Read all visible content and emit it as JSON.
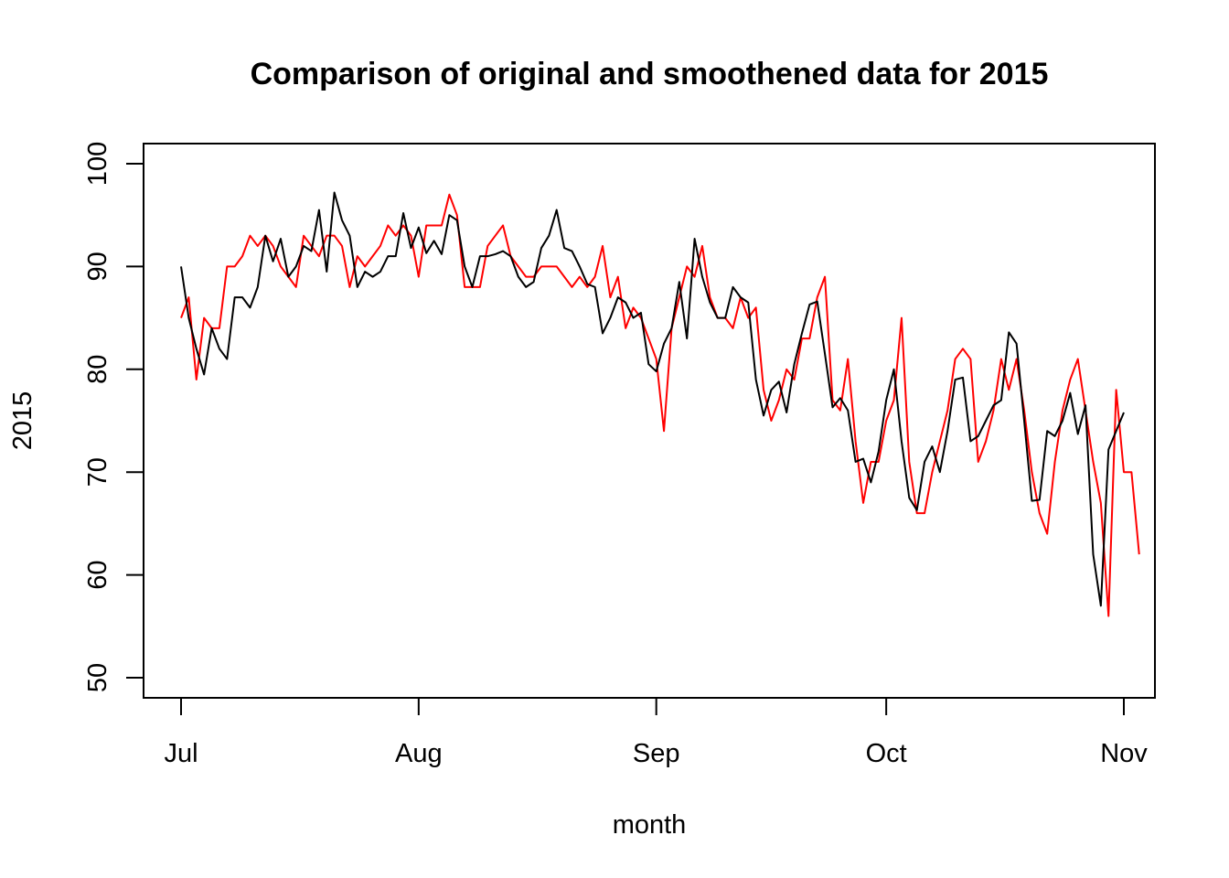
{
  "chart_data": {
    "type": "line",
    "title": "Comparison of original and smoothened data for 2015",
    "xlabel": "month",
    "ylabel": "2015",
    "x_axis": {
      "type": "date",
      "range": [
        "2015-07-01",
        "2015-11-01"
      ],
      "ticks": [
        {
          "date": "2015-07-01",
          "label": "Jul"
        },
        {
          "date": "2015-08-01",
          "label": "Aug"
        },
        {
          "date": "2015-09-01",
          "label": "Sep"
        },
        {
          "date": "2015-10-01",
          "label": "Oct"
        },
        {
          "date": "2015-11-01",
          "label": "Nov"
        }
      ]
    },
    "y_axis": {
      "range": [
        50,
        100
      ],
      "ticks": [
        "50",
        "60",
        "70",
        "80",
        "90",
        "100"
      ]
    },
    "grid": false,
    "legend": "none",
    "x_start": "2015-07-01",
    "x_step_days": 1,
    "series": [
      {
        "color": "#ff0000",
        "values": [
          85,
          87,
          79,
          85,
          84,
          84,
          90,
          90,
          91,
          93,
          92,
          93,
          92,
          90,
          89,
          88,
          93,
          92,
          91,
          93,
          93,
          92,
          88,
          91,
          90,
          91,
          92,
          94,
          93,
          94,
          93,
          89,
          94,
          94,
          94,
          97,
          95,
          88,
          88,
          88,
          92,
          93,
          94,
          91,
          90,
          89,
          89,
          90,
          90,
          90,
          89,
          88,
          89,
          88,
          89,
          92,
          87,
          89,
          84,
          86,
          85,
          83,
          81,
          74,
          84,
          87,
          90,
          89,
          92,
          87,
          85,
          85,
          84,
          87,
          85,
          86,
          78,
          75,
          77,
          80,
          79,
          83,
          83,
          87,
          89,
          77,
          76,
          81,
          73,
          67,
          71,
          71,
          75,
          77,
          85,
          71,
          66,
          66,
          70,
          73,
          76,
          81,
          82,
          81,
          71,
          73,
          76,
          81,
          78,
          81,
          76,
          70,
          66,
          64,
          71,
          76,
          79,
          81,
          76,
          71,
          67,
          56,
          78,
          70,
          70,
          62
        ]
      },
      {
        "color": "#000000",
        "values": [
          90,
          85,
          82,
          79.5,
          84,
          82,
          81,
          87,
          87,
          86,
          88,
          93,
          90.5,
          92.7,
          89,
          90,
          92,
          91.5,
          95.5,
          89.5,
          97.2,
          94.5,
          93,
          88,
          89.5,
          89,
          89.5,
          91,
          91,
          95.2,
          91.8,
          93.8,
          91.3,
          92.5,
          91.2,
          95,
          94.5,
          90,
          88,
          91,
          91,
          91.2,
          91.5,
          91,
          89,
          88,
          88.5,
          91.8,
          93,
          95.5,
          91.8,
          91.5,
          90,
          88.3,
          88,
          83.5,
          85,
          87,
          86.5,
          85,
          85.5,
          80.5,
          79.8,
          82.5,
          84,
          88.5,
          83,
          92.7,
          89,
          86.5,
          85,
          85,
          88,
          87,
          86.5,
          79,
          75.5,
          78,
          78.8,
          75.8,
          80.5,
          83.5,
          86.3,
          86.6,
          81.5,
          76.3,
          77.2,
          76,
          71,
          71.3,
          69,
          72,
          77,
          80,
          73,
          67.5,
          66.3,
          71,
          72.5,
          70,
          74,
          79,
          79.2,
          73,
          73.5,
          75,
          76.5,
          77,
          83.6,
          82.5,
          75,
          67.2,
          67.3,
          74,
          73.5,
          75,
          77.7,
          73.7,
          76.5,
          62,
          57,
          72.2,
          74,
          75.8
        ]
      }
    ]
  }
}
